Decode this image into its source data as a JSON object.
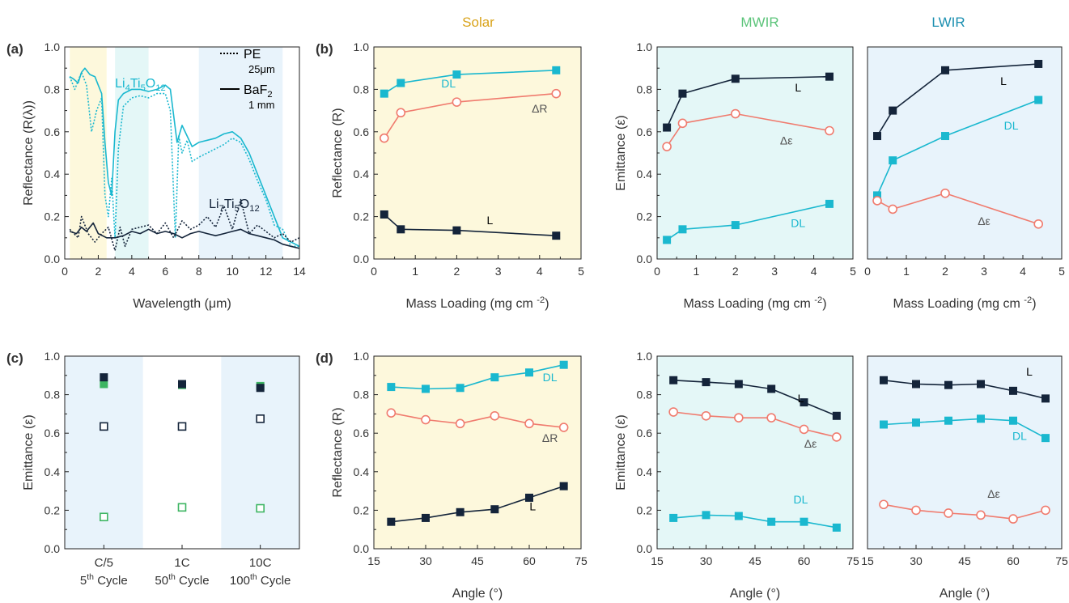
{
  "headers": {
    "solar": "Solar",
    "mwir": "MWIR",
    "lwir": "LWIR"
  },
  "colors": {
    "solar": "#d9a31a",
    "mwir": "#5cc47a",
    "lwir": "#1b8fb0",
    "dark": "#14243a",
    "cyan": "#1ab8cf",
    "salmon": "#f07b6e",
    "green": "#3db562",
    "yellowBg": "#fdf8dc",
    "cyanBg": "#e4f7f7",
    "blueBg": "#e8f3fb"
  },
  "chart_data": [
    {
      "id": "a",
      "panel_label": "(a)",
      "type": "line",
      "xlabel": "Wavelength (μm)",
      "ylabel": "Reflectance (R(λ))",
      "xlim": [
        0,
        14
      ],
      "ylim": [
        0,
        1.0
      ],
      "xticks": [
        0,
        2,
        4,
        6,
        8,
        10,
        12,
        14
      ],
      "yticks": [
        0.0,
        0.2,
        0.4,
        0.6,
        0.8,
        1.0
      ],
      "bands": [
        {
          "x": [
            0.3,
            2.5
          ],
          "fill": "yellowBg"
        },
        {
          "x": [
            3,
            5
          ],
          "fill": "cyanBg"
        },
        {
          "x": [
            8,
            13
          ],
          "fill": "blueBg"
        }
      ],
      "legend": [
        {
          "label": "PE",
          "sub": "25μm",
          "dash": "dot"
        },
        {
          "label": "BaF2",
          "sub": "1 mm",
          "dash": "solid"
        }
      ],
      "annotations": [
        {
          "text": "Li4Ti5O12",
          "x": 3.0,
          "y": 0.81,
          "color": "cyan"
        },
        {
          "text": "Li7Ti5O12",
          "x": 8.6,
          "y": 0.24,
          "color": "dark"
        }
      ],
      "series": [
        {
          "color": "cyan",
          "dash": "solid",
          "x": [
            0.3,
            0.5,
            0.8,
            1.0,
            1.2,
            1.5,
            1.8,
            2.0,
            2.2,
            2.4,
            2.6,
            2.8,
            3.0,
            3.2,
            3.5,
            4.0,
            4.5,
            5.0,
            5.5,
            6.0,
            6.3,
            6.7,
            7.0,
            7.3,
            7.6,
            8.0,
            8.5,
            9.0,
            9.5,
            10.0,
            10.5,
            11.0,
            11.5,
            12.0,
            12.5,
            13.0,
            13.5,
            14.0
          ],
          "y": [
            0.86,
            0.85,
            0.83,
            0.88,
            0.9,
            0.87,
            0.86,
            0.82,
            0.78,
            0.55,
            0.36,
            0.3,
            0.6,
            0.75,
            0.78,
            0.8,
            0.8,
            0.79,
            0.8,
            0.82,
            0.8,
            0.55,
            0.63,
            0.58,
            0.53,
            0.55,
            0.56,
            0.57,
            0.59,
            0.6,
            0.57,
            0.5,
            0.4,
            0.3,
            0.2,
            0.1,
            0.08,
            0.06
          ]
        },
        {
          "color": "cyan",
          "dash": "dot",
          "x": [
            0.3,
            0.6,
            1.0,
            1.3,
            1.6,
            1.9,
            2.2,
            2.4,
            2.6,
            2.8,
            3.0,
            3.2,
            3.5,
            4.0,
            4.5,
            5.0,
            5.5,
            6.0,
            6.3,
            6.6,
            6.8,
            7.0,
            7.3,
            7.6,
            8.0,
            8.5,
            9.0,
            9.5,
            10.0,
            10.5,
            11.0,
            11.5,
            12.0,
            12.5,
            13.0,
            13.5,
            14.0
          ],
          "y": [
            0.86,
            0.8,
            0.88,
            0.82,
            0.6,
            0.7,
            0.76,
            0.3,
            0.2,
            0.38,
            0.1,
            0.52,
            0.72,
            0.76,
            0.77,
            0.76,
            0.78,
            0.78,
            0.7,
            0.1,
            0.58,
            0.5,
            0.56,
            0.46,
            0.48,
            0.5,
            0.52,
            0.54,
            0.57,
            0.55,
            0.47,
            0.37,
            0.28,
            0.16,
            0.14,
            0.06,
            0.06
          ]
        },
        {
          "color": "dark",
          "dash": "solid",
          "x": [
            0.3,
            0.7,
            1.0,
            1.3,
            1.7,
            2.0,
            2.5,
            3.0,
            3.5,
            4.0,
            4.5,
            5.0,
            5.5,
            6.0,
            6.5,
            7.0,
            7.5,
            8.0,
            8.5,
            9.0,
            9.5,
            10.0,
            10.5,
            11.0,
            11.5,
            12.0,
            12.5,
            13.0,
            13.5,
            14.0
          ],
          "y": [
            0.13,
            0.12,
            0.15,
            0.13,
            0.17,
            0.12,
            0.1,
            0.1,
            0.11,
            0.13,
            0.12,
            0.14,
            0.12,
            0.13,
            0.12,
            0.1,
            0.12,
            0.13,
            0.12,
            0.11,
            0.12,
            0.13,
            0.14,
            0.12,
            0.11,
            0.1,
            0.09,
            0.07,
            0.06,
            0.05
          ]
        },
        {
          "color": "dark",
          "dash": "dot",
          "x": [
            0.3,
            0.8,
            1.0,
            1.4,
            1.8,
            2.2,
            2.6,
            3.0,
            3.3,
            3.6,
            4.0,
            4.5,
            5.0,
            5.5,
            6.0,
            6.5,
            7.0,
            7.5,
            8.0,
            8.5,
            9.0,
            9.5,
            10.0,
            10.5,
            11.0,
            11.5,
            12.0,
            12.5,
            13.0,
            13.5,
            14.0
          ],
          "y": [
            0.14,
            0.1,
            0.2,
            0.12,
            0.08,
            0.12,
            0.15,
            0.04,
            0.15,
            0.06,
            0.14,
            0.15,
            0.16,
            0.12,
            0.17,
            0.1,
            0.18,
            0.14,
            0.16,
            0.2,
            0.15,
            0.25,
            0.14,
            0.28,
            0.12,
            0.16,
            0.13,
            0.1,
            0.12,
            0.08,
            0.1
          ]
        }
      ]
    },
    {
      "id": "b1",
      "panel_label": "(b)",
      "type": "line",
      "bg": "yellowBg",
      "xlabel": "Mass Loading (mg cm-2)",
      "ylabel": "Reflectance (R)",
      "xlim": [
        0,
        5
      ],
      "ylim": [
        0,
        1.0
      ],
      "xticks": [
        0,
        1,
        2,
        3,
        4,
        5
      ],
      "yticks": [
        0.0,
        0.2,
        0.4,
        0.6,
        0.8,
        1.0
      ],
      "series": [
        {
          "name": "DL",
          "color": "cyan",
          "marker": "square-filled",
          "x": [
            0.25,
            0.65,
            2.0,
            4.4
          ],
          "y": [
            0.78,
            0.83,
            0.87,
            0.89
          ],
          "label_xy": [
            1.8,
            0.81
          ]
        },
        {
          "name": "ΔR",
          "color": "salmon",
          "marker": "circle-open",
          "x": [
            0.25,
            0.65,
            2.0,
            4.4
          ],
          "y": [
            0.57,
            0.69,
            0.74,
            0.78
          ],
          "label_xy": [
            4.0,
            0.69
          ]
        },
        {
          "name": "L",
          "color": "dark",
          "marker": "square-filled",
          "x": [
            0.25,
            0.65,
            2.0,
            4.4
          ],
          "y": [
            0.21,
            0.14,
            0.135,
            0.11
          ],
          "label_xy": [
            2.8,
            0.165
          ]
        }
      ]
    },
    {
      "id": "b2",
      "type": "line",
      "bg": "cyanBg",
      "xlabel": "Mass Loading (mg cm-2)",
      "ylabel": "Emittance (ε)",
      "xlim": [
        0,
        5
      ],
      "ylim": [
        0,
        1.0
      ],
      "xticks": [
        0,
        1,
        2,
        3,
        4,
        5
      ],
      "yticks": [
        0.0,
        0.2,
        0.4,
        0.6,
        0.8,
        1.0
      ],
      "series": [
        {
          "name": "L",
          "color": "dark",
          "marker": "square-filled",
          "x": [
            0.25,
            0.65,
            2.0,
            4.4
          ],
          "y": [
            0.62,
            0.78,
            0.85,
            0.86
          ],
          "label_xy": [
            3.6,
            0.79
          ]
        },
        {
          "name": "Δε",
          "color": "salmon",
          "marker": "circle-open",
          "x": [
            0.25,
            0.65,
            2.0,
            4.4
          ],
          "y": [
            0.53,
            0.64,
            0.685,
            0.605
          ],
          "label_xy": [
            3.3,
            0.54
          ]
        },
        {
          "name": "DL",
          "color": "cyan",
          "marker": "square-filled",
          "x": [
            0.25,
            0.65,
            2.0,
            4.4
          ],
          "y": [
            0.09,
            0.14,
            0.16,
            0.26
          ],
          "label_xy": [
            3.6,
            0.15
          ]
        }
      ]
    },
    {
      "id": "b3",
      "type": "line",
      "bg": "blueBg",
      "xlabel": "Mass Loading (mg cm-2)",
      "ylabel": "",
      "xlim": [
        0,
        5
      ],
      "ylim": [
        0,
        1.0
      ],
      "xticks": [
        0,
        1,
        2,
        3,
        4,
        5
      ],
      "yticks": [],
      "series": [
        {
          "name": "L",
          "color": "dark",
          "marker": "square-filled",
          "x": [
            0.25,
            0.65,
            2.0,
            4.4
          ],
          "y": [
            0.58,
            0.7,
            0.89,
            0.92
          ],
          "label_xy": [
            3.5,
            0.82
          ]
        },
        {
          "name": "DL",
          "color": "cyan",
          "marker": "square-filled",
          "x": [
            0.25,
            0.65,
            2.0,
            4.4
          ],
          "y": [
            0.3,
            0.465,
            0.58,
            0.75
          ],
          "label_xy": [
            3.7,
            0.61
          ]
        },
        {
          "name": "Δε",
          "color": "salmon",
          "marker": "circle-open",
          "x": [
            0.25,
            0.65,
            2.0,
            4.4
          ],
          "y": [
            0.275,
            0.235,
            0.31,
            0.165
          ],
          "label_xy": [
            3.0,
            0.16
          ]
        }
      ]
    },
    {
      "id": "c",
      "panel_label": "(c)",
      "type": "scatter",
      "xlabel": "",
      "ylabel": "Emittance (ε)",
      "categories": [
        "C/5",
        "1C",
        "10C"
      ],
      "sublabels": [
        "5th Cycle",
        "50th Cycle",
        "100th Cycle"
      ],
      "ylim": [
        0,
        1.0
      ],
      "yticks": [
        0.0,
        0.2,
        0.4,
        0.6,
        0.8,
        1.0
      ],
      "bands": [
        {
          "index": 0,
          "fill": "blueBg"
        },
        {
          "index": 2,
          "fill": "blueBg"
        }
      ],
      "series": [
        {
          "color": "green",
          "marker": "square-filled",
          "values": [
            0.855,
            0.85,
            0.845
          ]
        },
        {
          "color": "dark",
          "marker": "square-filled",
          "values": [
            0.89,
            0.855,
            0.835
          ]
        },
        {
          "color": "dark",
          "marker": "square-open",
          "values": [
            0.635,
            0.635,
            0.675
          ]
        },
        {
          "color": "green",
          "marker": "square-open",
          "values": [
            0.165,
            0.215,
            0.21
          ]
        }
      ]
    },
    {
      "id": "d1",
      "panel_label": "(d)",
      "type": "line",
      "bg": "yellowBg",
      "xlabel": "Angle (°)",
      "ylabel": "Reflectance (R)",
      "xlim": [
        15,
        75
      ],
      "ylim": [
        0,
        1.0
      ],
      "xticks": [
        15,
        30,
        45,
        60,
        75
      ],
      "xminor": [
        20,
        25,
        35,
        40,
        50,
        55,
        65,
        70
      ],
      "yticks": [
        0.0,
        0.2,
        0.4,
        0.6,
        0.8,
        1.0
      ],
      "series": [
        {
          "name": "DL",
          "color": "cyan",
          "marker": "square-filled",
          "x": [
            20,
            30,
            40,
            50,
            60,
            70
          ],
          "y": [
            0.84,
            0.83,
            0.835,
            0.89,
            0.915,
            0.955
          ],
          "label_xy": [
            66,
            0.87
          ]
        },
        {
          "name": "ΔR",
          "color": "salmon",
          "marker": "circle-open",
          "x": [
            20,
            30,
            40,
            50,
            60,
            70
          ],
          "y": [
            0.705,
            0.67,
            0.65,
            0.69,
            0.65,
            0.63
          ],
          "label_xy": [
            66,
            0.555
          ]
        },
        {
          "name": "L",
          "color": "dark",
          "marker": "square-filled",
          "x": [
            20,
            30,
            40,
            50,
            60,
            70
          ],
          "y": [
            0.14,
            0.16,
            0.19,
            0.205,
            0.265,
            0.325
          ],
          "label_xy": [
            61,
            0.2
          ]
        }
      ]
    },
    {
      "id": "d2",
      "type": "line",
      "bg": "cyanBg",
      "xlabel": "Angle (°)",
      "ylabel": "Emittance (ε)",
      "xlim": [
        15,
        75
      ],
      "ylim": [
        0,
        1.0
      ],
      "xticks": [
        15,
        30,
        45,
        60,
        75
      ],
      "xminor": [
        20,
        25,
        35,
        40,
        50,
        55,
        65,
        70
      ],
      "yticks": [
        0.0,
        0.2,
        0.4,
        0.6,
        0.8,
        1.0
      ],
      "series": [
        {
          "name": "L",
          "color": "dark",
          "marker": "square-filled",
          "x": [
            20,
            30,
            40,
            50,
            60,
            70
          ],
          "y": [
            0.875,
            0.865,
            0.855,
            0.83,
            0.76,
            0.69
          ],
          "label_xy": [
            59,
            0.76
          ]
        },
        {
          "name": "Δε",
          "color": "salmon",
          "marker": "circle-open",
          "x": [
            20,
            30,
            40,
            50,
            60,
            70
          ],
          "y": [
            0.71,
            0.69,
            0.68,
            0.68,
            0.62,
            0.58
          ],
          "label_xy": [
            62,
            0.525
          ]
        },
        {
          "name": "DL",
          "color": "cyan",
          "marker": "square-filled",
          "x": [
            20,
            30,
            40,
            50,
            60,
            70
          ],
          "y": [
            0.16,
            0.175,
            0.17,
            0.14,
            0.14,
            0.11
          ],
          "label_xy": [
            59,
            0.235
          ]
        }
      ]
    },
    {
      "id": "d3",
      "type": "line",
      "bg": "blueBg",
      "xlabel": "Angle (°)",
      "ylabel": "",
      "xlim": [
        15,
        75
      ],
      "ylim": [
        0,
        1.0
      ],
      "xticks": [
        15,
        30,
        45,
        60,
        75
      ],
      "xminor": [
        20,
        25,
        35,
        40,
        50,
        55,
        65,
        70
      ],
      "yticks": [],
      "series": [
        {
          "name": "L",
          "color": "dark",
          "marker": "square-filled",
          "x": [
            20,
            30,
            40,
            50,
            60,
            70
          ],
          "y": [
            0.875,
            0.855,
            0.85,
            0.855,
            0.82,
            0.78
          ],
          "label_xy": [
            65,
            0.9
          ]
        },
        {
          "name": "DL",
          "color": "cyan",
          "marker": "square-filled",
          "x": [
            20,
            30,
            40,
            50,
            60,
            70
          ],
          "y": [
            0.645,
            0.655,
            0.665,
            0.675,
            0.665,
            0.575
          ],
          "label_xy": [
            62,
            0.565
          ]
        },
        {
          "name": "Δε",
          "color": "salmon",
          "marker": "circle-open",
          "x": [
            20,
            30,
            40,
            50,
            60,
            70
          ],
          "y": [
            0.23,
            0.2,
            0.185,
            0.175,
            0.155,
            0.2
          ],
          "label_xy": [
            54,
            0.265
          ]
        }
      ]
    }
  ]
}
